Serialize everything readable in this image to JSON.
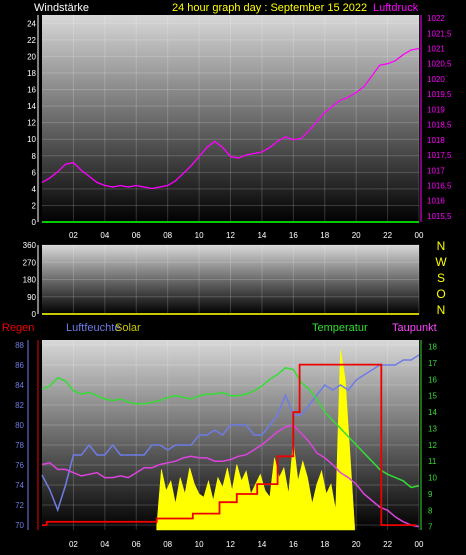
{
  "header": {
    "left_label": "Windstärke",
    "title": "24 hour graph day : September 15 2022",
    "right_label": "Luftdruck"
  },
  "chart_data": [
    {
      "type": "line",
      "panel": "wind-pressure",
      "xlabel": "",
      "x_ticks": [
        "02",
        "04",
        "06",
        "08",
        "10",
        "12",
        "14",
        "16",
        "18",
        "20",
        "22",
        "00"
      ],
      "x_range": [
        0,
        24
      ],
      "y_left": {
        "label": "Windstärke",
        "ticks": [
          0,
          2,
          4,
          6,
          8,
          10,
          12,
          14,
          16,
          18,
          20,
          22,
          24
        ],
        "range": [
          0,
          25
        ]
      },
      "y_right": {
        "label": "Luftdruck",
        "ticks": [
          "1015,5",
          "1016",
          "1016,5",
          "1017",
          "1017,5",
          "1018",
          "1018,5",
          "1019",
          "1019,5",
          "1020",
          "1020,5",
          "1021",
          "1021,5",
          "1022"
        ],
        "range": [
          1015.3,
          1022.1
        ]
      },
      "series": [
        {
          "name": "Windstärke",
          "axis": "left",
          "color": "#00cc00",
          "x": [
            0,
            24
          ],
          "y": [
            0,
            0
          ]
        },
        {
          "name": "Luftdruck",
          "axis": "right",
          "color": "#ff00ff",
          "x": [
            0,
            0.5,
            1,
            1.5,
            2,
            2.5,
            3,
            3.5,
            4,
            4.5,
            5,
            5.5,
            6,
            6.5,
            7,
            7.5,
            8,
            8.5,
            9,
            9.5,
            10,
            10.5,
            11,
            11.5,
            12,
            12.5,
            13,
            13.5,
            14,
            14.5,
            15,
            15.5,
            16,
            16.5,
            17,
            17.5,
            18,
            18.5,
            19,
            19.5,
            20,
            20.5,
            21,
            21.5,
            22,
            22.5,
            23,
            23.5,
            24
          ],
          "y": [
            1016.6,
            1016.75,
            1016.95,
            1017.2,
            1017.25,
            1017.0,
            1016.8,
            1016.6,
            1016.5,
            1016.45,
            1016.5,
            1016.45,
            1016.5,
            1016.45,
            1016.4,
            1016.45,
            1016.5,
            1016.65,
            1016.9,
            1017.15,
            1017.45,
            1017.75,
            1017.95,
            1017.75,
            1017.45,
            1017.4,
            1017.5,
            1017.55,
            1017.6,
            1017.75,
            1017.95,
            1018.1,
            1018.0,
            1018.05,
            1018.3,
            1018.6,
            1018.9,
            1019.1,
            1019.3,
            1019.4,
            1019.55,
            1019.75,
            1020.1,
            1020.45,
            1020.5,
            1020.6,
            1020.8,
            1020.95,
            1021.0
          ]
        }
      ]
    },
    {
      "type": "scatter",
      "panel": "wind-direction",
      "x_ticks": [
        "02",
        "04",
        "06",
        "08",
        "10",
        "12",
        "14",
        "16",
        "18",
        "20",
        "22",
        "00"
      ],
      "x_range": [
        0,
        24
      ],
      "y_left": {
        "ticks": [
          0,
          90,
          180,
          270,
          360
        ],
        "range": [
          0,
          360
        ]
      },
      "y_right": {
        "ticks": [
          "N",
          "W",
          "S",
          "O",
          "N"
        ]
      },
      "series": [
        {
          "name": "Windrichtung",
          "color": "#c8c800",
          "x": [
            0,
            24
          ],
          "y": [
            0,
            0
          ]
        }
      ]
    },
    {
      "type": "line",
      "panel": "rain-humidity-solar-temp-dew",
      "x_ticks": [
        "02",
        "04",
        "06",
        "08",
        "10",
        "12",
        "14",
        "16",
        "18",
        "20",
        "22",
        "00"
      ],
      "x_range": [
        0,
        24
      ],
      "y_left": {
        "label": "Luftfeuchte",
        "ticks": [
          70,
          72,
          74,
          76,
          78,
          80,
          82,
          84,
          86,
          88
        ],
        "range": [
          69.5,
          88.5
        ]
      },
      "y_right": {
        "label": "Temperatur",
        "ticks": [
          7,
          8,
          9,
          10,
          11,
          12,
          13,
          14,
          15,
          16,
          17,
          18
        ],
        "range": [
          6.8,
          18.4
        ]
      },
      "legend": [
        "Regen",
        "Luftfeuchte",
        "Solar",
        "Temperatur",
        "Taupunkt"
      ],
      "series": [
        {
          "name": "Luftfeuchte",
          "axis": "left",
          "color": "#6e7ce6",
          "x": [
            0,
            0.5,
            1,
            1.5,
            2,
            2.5,
            3,
            3.5,
            4,
            4.5,
            5,
            5.5,
            6,
            6.5,
            7,
            7.5,
            8,
            8.5,
            9,
            9.5,
            10,
            10.5,
            11,
            11.5,
            12,
            12.5,
            13,
            13.5,
            14,
            14.5,
            15,
            15.5,
            16,
            16.5,
            17,
            17.5,
            18,
            18.5,
            19,
            19.5,
            20,
            20.5,
            21,
            21.5,
            22,
            22.5,
            23,
            23.5,
            24
          ],
          "y": [
            75,
            73.5,
            71.5,
            74,
            77,
            77,
            78,
            77,
            77,
            78,
            77,
            77,
            77,
            77,
            78,
            78,
            77.5,
            78,
            78,
            78,
            79,
            79,
            79.5,
            79,
            80,
            80,
            80,
            79,
            79,
            80,
            81,
            83,
            81,
            81,
            82,
            83,
            84,
            83.5,
            84,
            83.5,
            84.5,
            85,
            85.5,
            86,
            86,
            86,
            86.5,
            86.5,
            87
          ]
        },
        {
          "name": "Temperatur",
          "axis": "right",
          "color": "#33dd33",
          "x": [
            0,
            0.5,
            1,
            1.5,
            2,
            2.5,
            3,
            3.5,
            4,
            4.5,
            5,
            5.5,
            6,
            6.5,
            7,
            7.5,
            8,
            8.5,
            9,
            9.5,
            10,
            10.5,
            11,
            11.5,
            12,
            12.5,
            13,
            13.5,
            14,
            14.5,
            15,
            15.5,
            16,
            16.5,
            17,
            17.5,
            18,
            18.5,
            19,
            19.5,
            20,
            20.5,
            21,
            21.5,
            22,
            22.5,
            23,
            23.5,
            24
          ],
          "y": [
            15.4,
            15.6,
            16.1,
            15.9,
            15.3,
            15.1,
            15.2,
            15.0,
            14.8,
            14.7,
            14.8,
            14.6,
            14.5,
            14.5,
            14.6,
            14.7,
            14.9,
            15.0,
            14.9,
            14.8,
            15.0,
            15.1,
            15.1,
            15.2,
            15.0,
            15.0,
            15.1,
            15.3,
            15.6,
            16.0,
            16.3,
            16.7,
            16.6,
            15.8,
            15.4,
            14.8,
            14.0,
            13.5,
            13.0,
            12.5,
            12.0,
            11.5,
            11.0,
            10.5,
            10.2,
            10.0,
            9.8,
            9.4,
            9.5
          ]
        },
        {
          "name": "Taupunkt",
          "axis": "right",
          "color": "#dd44dd",
          "x": [
            0,
            0.5,
            1,
            1.5,
            2,
            2.5,
            3,
            3.5,
            4,
            4.5,
            5,
            5.5,
            6,
            6.5,
            7,
            7.5,
            8,
            8.5,
            9,
            9.5,
            10,
            10.5,
            11,
            11.5,
            12,
            12.5,
            13,
            13.5,
            14,
            14.5,
            15,
            15.5,
            16,
            16.5,
            17,
            17.5,
            18,
            18.5,
            19,
            19.5,
            20,
            20.5,
            21,
            21.5,
            22,
            22.5,
            23,
            23.5,
            24
          ],
          "y": [
            10.8,
            10.9,
            10.5,
            10.5,
            10.3,
            10.1,
            10.2,
            10.3,
            10.0,
            10.0,
            10.1,
            10.0,
            10.3,
            10.6,
            10.6,
            10.8,
            10.9,
            11.0,
            11.2,
            11.3,
            11.2,
            11.2,
            11.0,
            11.0,
            11.1,
            11.3,
            11.4,
            11.7,
            12.0,
            12.4,
            12.8,
            13.1,
            13.2,
            12.7,
            12.2,
            11.5,
            11.2,
            10.8,
            10.3,
            10.0,
            9.6,
            9.0,
            8.6,
            8.2,
            8.0,
            7.6,
            7.3,
            7.1,
            7.0
          ]
        },
        {
          "name": "Regen",
          "axis": "right",
          "color": "#ee0000",
          "shape": "step",
          "x": [
            0,
            0.3,
            0.3,
            7.3,
            7.3,
            9.6,
            9.6,
            11.3,
            11.3,
            12.4,
            12.4,
            13.7,
            13.7,
            15.0,
            15.0,
            16.0,
            16.0,
            16.4,
            16.4,
            21.6,
            21.6,
            22.3,
            22.3,
            23.1,
            23.1,
            23.8,
            23.8
          ],
          "y": [
            7.1,
            7.1,
            7.3,
            7.3,
            7.5,
            7.5,
            7.8,
            7.8,
            8.5,
            8.5,
            9.0,
            9.0,
            9.6,
            9.6,
            11.3,
            11.3,
            14.0,
            14.0,
            16.9,
            16.9,
            7.1,
            7.1,
            7.1,
            7.1,
            7.1,
            7.1,
            7.1
          ]
        },
        {
          "name": "Solar",
          "axis": "right",
          "color": "#ffff00",
          "shape": "area",
          "x": [
            7.3,
            7.6,
            7.9,
            8.2,
            8.5,
            8.8,
            9.1,
            9.4,
            9.7,
            10.0,
            10.3,
            10.6,
            10.9,
            11.2,
            11.5,
            11.8,
            12.1,
            12.4,
            12.7,
            13.0,
            13.3,
            13.6,
            13.9,
            14.2,
            14.5,
            14.8,
            15.1,
            15.4,
            15.7,
            16.0,
            16.3,
            16.6,
            16.9,
            17.2,
            17.5,
            17.8,
            18.1,
            18.4,
            18.7,
            19.0,
            19.3,
            19.6,
            19.9
          ],
          "y": [
            7.0,
            10.5,
            9.2,
            9.8,
            8.4,
            10.0,
            9.0,
            10.6,
            9.6,
            9.0,
            8.8,
            9.8,
            8.6,
            10.0,
            9.4,
            10.6,
            9.2,
            10.8,
            9.8,
            10.4,
            9.0,
            9.6,
            10.2,
            9.2,
            8.8,
            11.2,
            10.0,
            10.6,
            9.0,
            12.2,
            9.8,
            11.0,
            10.0,
            8.4,
            9.6,
            10.4,
            9.0,
            9.6,
            8.0,
            17.8,
            16.0,
            11.5,
            7.0
          ]
        }
      ]
    }
  ]
}
